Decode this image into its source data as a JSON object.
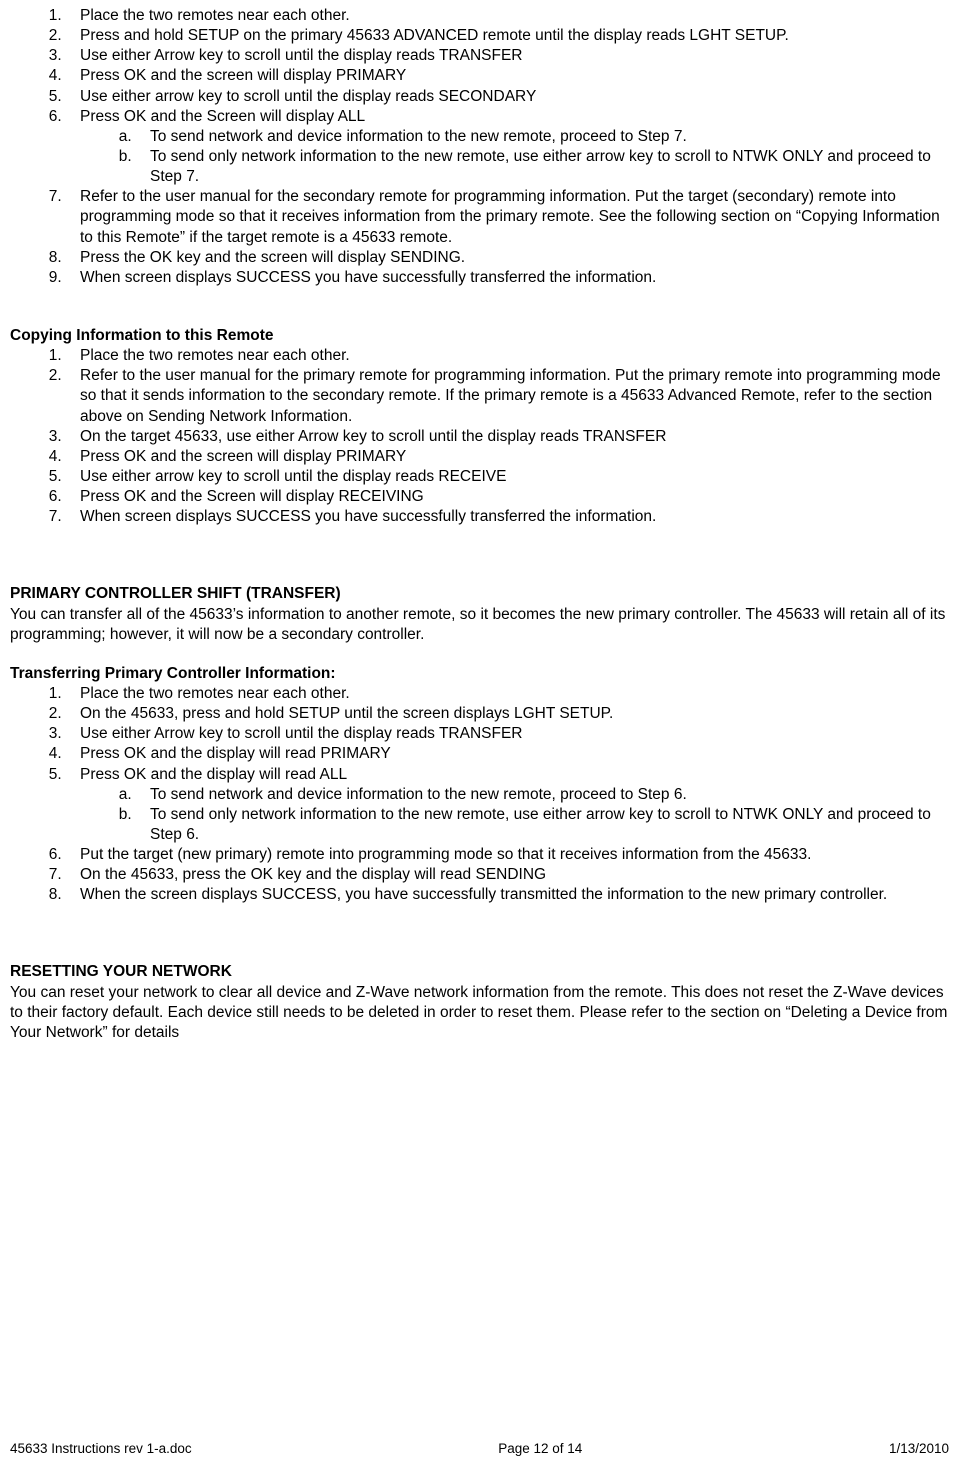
{
  "listA": {
    "1": "Place the two remotes near each other.",
    "2": "Press and hold SETUP on the primary 45633 ADVANCED remote until the display reads LGHT SETUP.",
    "3": "Use either Arrow key to scroll until the display reads TRANSFER",
    "4": "Press OK and the screen will display PRIMARY",
    "5": "Use either arrow key to scroll until the display reads SECONDARY",
    "6": "Press OK and the Screen will display ALL",
    "6a": "To send network and device information to the new remote, proceed to Step 7.",
    "6b": "To send only network information to the new remote, use either arrow key to scroll to NTWK ONLY and proceed to Step 7.",
    "7": "Refer to the user manual for the secondary remote for programming information. Put the target (secondary) remote into programming mode so that it receives information from the primary remote. See the following section on “Copying Information to this Remote” if the target remote is a 45633 remote.",
    "8": "Press the OK key and the screen will display SENDING.",
    "9": "When screen displays SUCCESS you have successfully transferred the information."
  },
  "headingB": "Copying Information to this Remote",
  "listB": {
    "1": "Place the two remotes near each other.",
    "2": "Refer to the user manual for the primary remote for programming information.  Put the primary remote into programming mode so that it sends information to the secondary remote.  If the primary remote is a 45633 Advanced Remote, refer to the section above on Sending Network Information.",
    "3": "On the target 45633, use either Arrow key to scroll until the display reads TRANSFER",
    "4": "Press OK and the screen will display PRIMARY",
    "5": "Use either arrow key to scroll until the display reads RECEIVE",
    "6": "Press OK and the Screen will display RECEIVING",
    "7": "When screen displays SUCCESS you have successfully transferred the information."
  },
  "headingC": "PRIMARY CONTROLLER SHIFT (TRANSFER)",
  "paraC": "You can transfer all of the 45633’s information to another remote, so it becomes the new primary controller. The 45633 will retain all of its programming; however, it will now be a secondary controller.",
  "headingD": "Transferring Primary Controller Information:",
  "listD": {
    "1": "Place the two remotes near each other.",
    "2": "On the 45633, press and hold SETUP until the screen displays LGHT SETUP.",
    "3": "Use either Arrow key to scroll until the display reads TRANSFER",
    "4": "Press OK and the display will read PRIMARY",
    "5": "Press OK and the display will read ALL",
    "5a": "To send network and device information to the new remote, proceed to Step 6.",
    "5b": "To send only network information to the new remote, use either arrow key to scroll to NTWK ONLY and proceed to Step 6.",
    "6": "Put the target (new primary) remote into programming mode so that it receives information from the 45633.",
    "7": "On the 45633, press the OK key and the display will read SENDING",
    "8": "When the screen displays SUCCESS, you have successfully transmitted the information to the new primary controller."
  },
  "headingE": "RESETTING YOUR NETWORK",
  "paraE": "You can reset your network to clear all device and Z-Wave network information from the remote.  This does not reset the Z-Wave devices to their factory default.  Each device still needs to be deleted in order to reset them.  Please refer to the section on “Deleting a Device from Your Network” for details",
  "footer": {
    "left": "45633 Instructions rev 1-a.doc",
    "center": "Page 12 of 14",
    "right": "1/13/2010"
  }
}
